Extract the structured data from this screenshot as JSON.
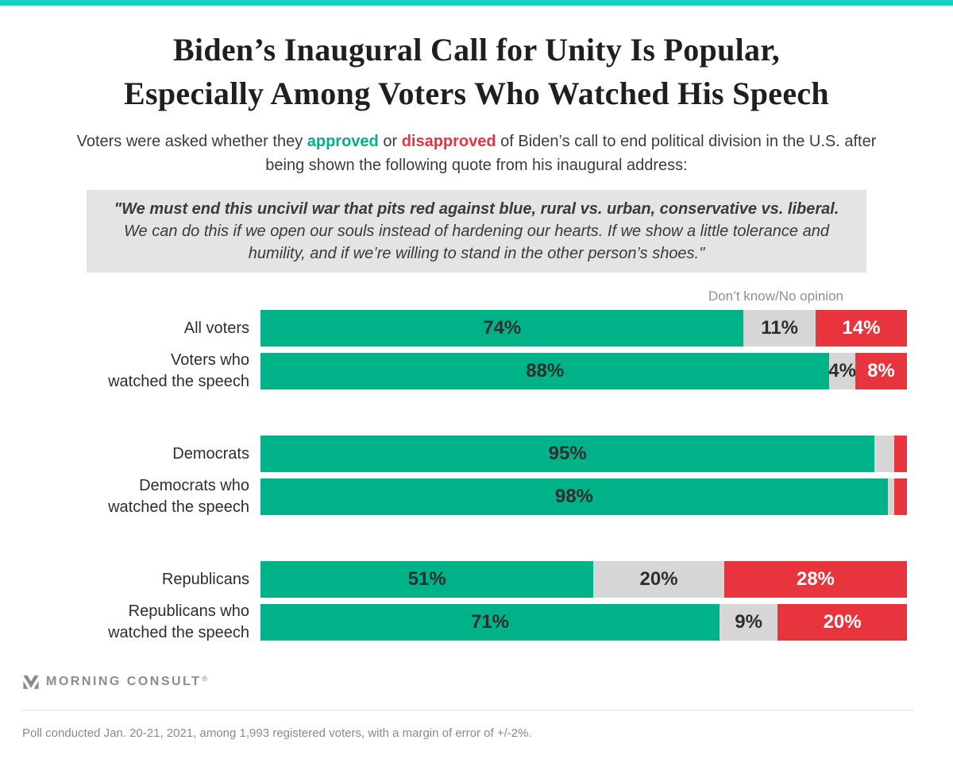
{
  "brand": {
    "topbar_color": "#14d0c5",
    "logo_text": "MORNING CONSULT",
    "logo_trademark": "®"
  },
  "header": {
    "title_line1": "Biden’s Inaugural Call for Unity Is Popular,",
    "title_line2": "Especially Among Voters Who Watched His Speech"
  },
  "subtitle": {
    "part1": "Voters were asked whether they ",
    "approved_word": "approved",
    "part2": " or ",
    "disapproved_word": "disapproved",
    "part3": " of Biden’s call to end political division in the U.S. after being shown the following quote from his inaugural address:"
  },
  "quote": {
    "bold_part": "\"We must end this uncivil war that pits red against blue, rural vs. urban, conservative vs. liberal.",
    "regular_part": " We can do this if we open our souls instead of hardening our hearts. If we show a little tolerance and humility, and if we’re willing to stand in the other person’s shoes.\""
  },
  "chart_data": {
    "type": "bar",
    "orientation": "horizontal",
    "stacked": true,
    "annotation": "Don’t know/No opinion",
    "series_names": [
      "Approve",
      "Don’t know/No opinion",
      "Disapprove"
    ],
    "colors": {
      "approve": "#00b287",
      "dont_know": "#d6d6d6",
      "disapprove": "#e8353d"
    },
    "xlim": [
      0,
      100
    ],
    "groups": [
      {
        "rows": [
          {
            "label_lines": [
              "All voters"
            ],
            "values": {
              "approve": 74,
              "dont_know": 11,
              "disapprove": 14
            },
            "labels": {
              "approve": "74%",
              "dont_know": "11%",
              "disapprove": "14%"
            }
          },
          {
            "label_lines": [
              "Voters who",
              "watched the speech"
            ],
            "values": {
              "approve": 88,
              "dont_know": 4,
              "disapprove": 8
            },
            "labels": {
              "approve": "88%",
              "dont_know": "4%",
              "disapprove": "8%"
            }
          }
        ]
      },
      {
        "rows": [
          {
            "label_lines": [
              "Democrats"
            ],
            "values": {
              "approve": 95,
              "dont_know": 3,
              "disapprove": 2
            },
            "labels": {
              "approve": "95%",
              "dont_know": "",
              "disapprove": ""
            }
          },
          {
            "label_lines": [
              "Democrats who",
              "watched the speech"
            ],
            "values": {
              "approve": 98,
              "dont_know": 1,
              "disapprove": 2
            },
            "labels": {
              "approve": "98%",
              "dont_know": "",
              "disapprove": ""
            }
          }
        ]
      },
      {
        "rows": [
          {
            "label_lines": [
              "Republicans"
            ],
            "values": {
              "approve": 51,
              "dont_know": 20,
              "disapprove": 28
            },
            "labels": {
              "approve": "51%",
              "dont_know": "20%",
              "disapprove": "28%"
            }
          },
          {
            "label_lines": [
              "Republicans who",
              "watched the speech"
            ],
            "values": {
              "approve": 71,
              "dont_know": 9,
              "disapprove": 20
            },
            "labels": {
              "approve": "71%",
              "dont_know": "9%",
              "disapprove": "20%"
            }
          }
        ]
      }
    ]
  },
  "footer": {
    "note": "Poll conducted Jan. 20-21, 2021, among 1,993 registered voters, with a margin of error of +/-2%."
  }
}
